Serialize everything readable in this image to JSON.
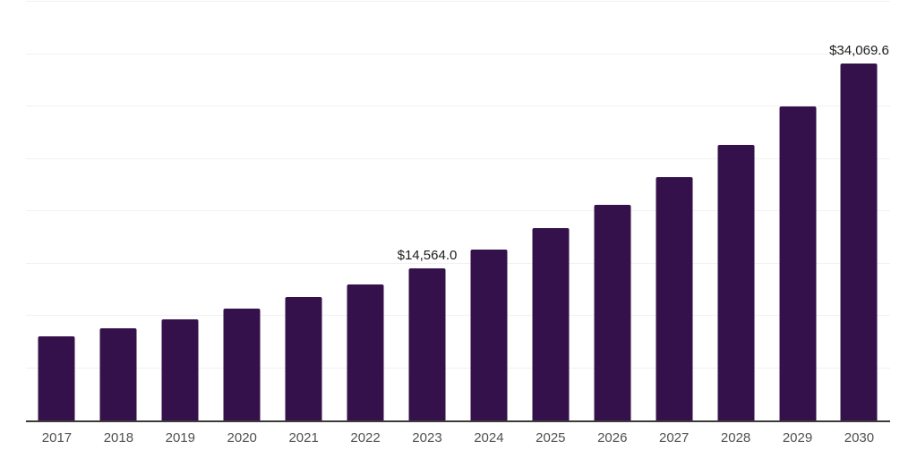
{
  "chart_data": {
    "type": "bar",
    "title": "",
    "xlabel": "",
    "ylabel": "",
    "categories": [
      "2017",
      "2018",
      "2019",
      "2020",
      "2021",
      "2022",
      "2023",
      "2024",
      "2025",
      "2026",
      "2027",
      "2028",
      "2029",
      "2030"
    ],
    "values": [
      8020,
      8790,
      9670,
      10720,
      11805,
      13000,
      14564.0,
      16330,
      18340,
      20590,
      23230,
      26350,
      29985,
      34069.6
    ],
    "data_labels": [
      null,
      null,
      null,
      null,
      null,
      null,
      "$14,564.0",
      null,
      null,
      null,
      null,
      null,
      null,
      "$34,069.6"
    ],
    "ylim": [
      0,
      40000
    ],
    "gridline_step": 5000,
    "grid": true,
    "legend_position": "none",
    "y_axis_labels_visible": false
  },
  "style": {
    "bar_color": "#34114a",
    "gridline_color": "#f1f1f1",
    "axis_line_color": "#3b3b3b",
    "x_label_color": "#4f4f4f",
    "data_label_color": "#1c1c1c",
    "background_color": "#ffffff"
  }
}
